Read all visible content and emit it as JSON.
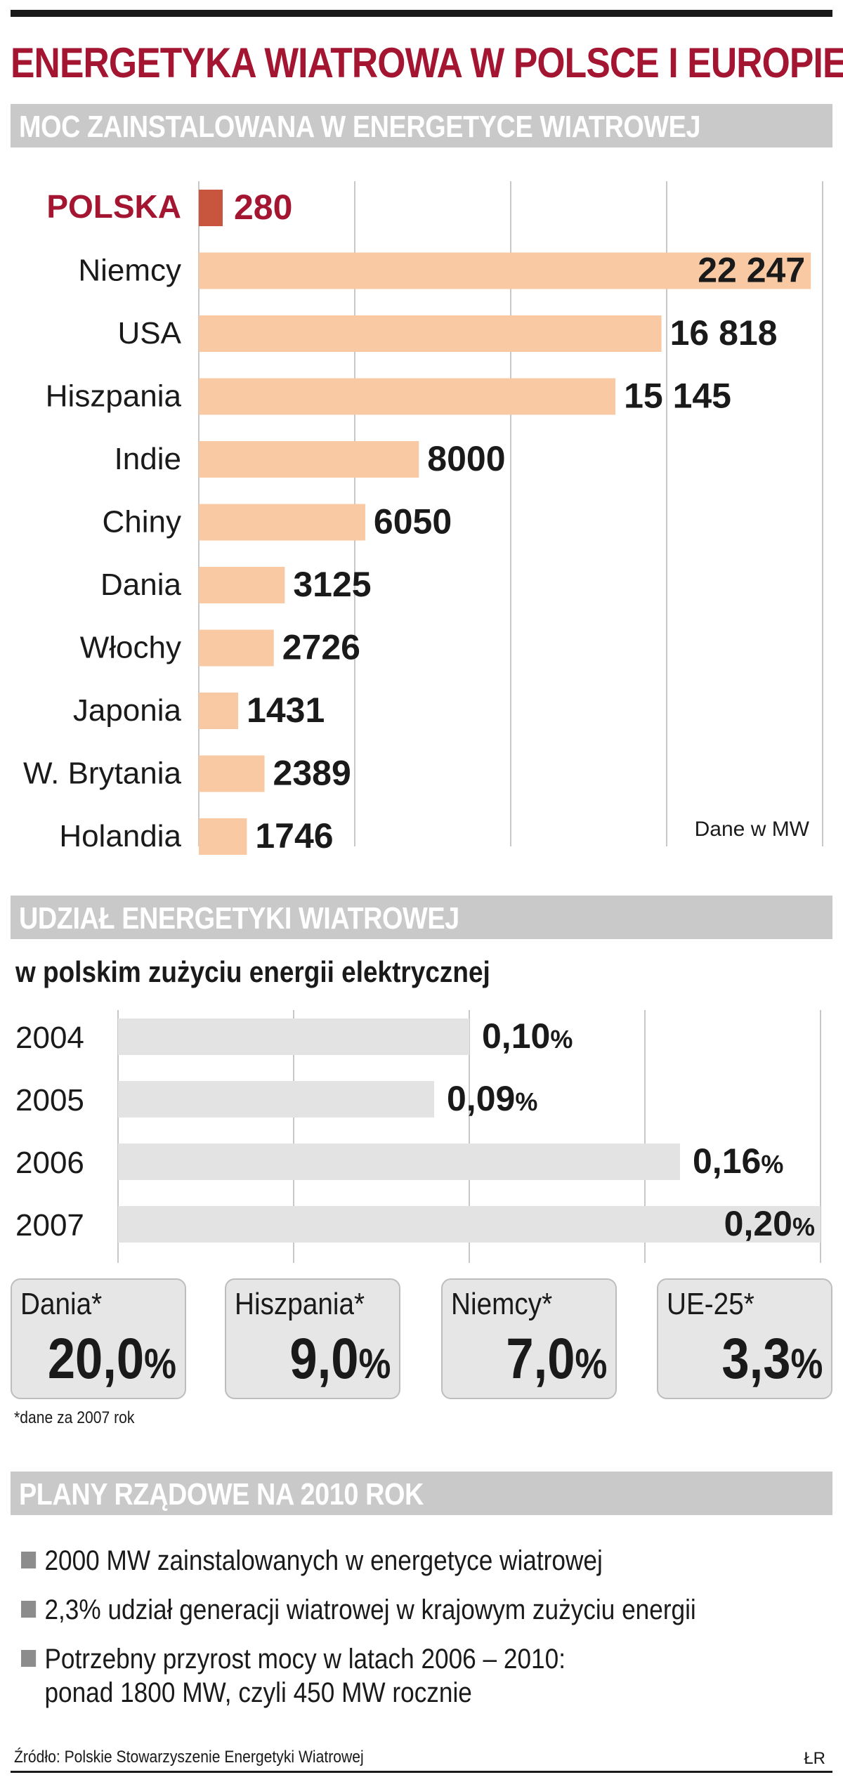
{
  "title": "ENERGETYKA WIATROWA W POLSCE I EUROPIE",
  "colors": {
    "title": "#a31530",
    "poland_bar": "#c8553d",
    "bar": "#f8c9a2",
    "share_bar": "#e3e3e3",
    "section_bar": "#c9c9c9"
  },
  "section1": {
    "header": "MOC ZAINSTALOWANA W ENERGETYCE WIATROWEJ",
    "unit_note": "Dane w MW"
  },
  "section2": {
    "header": "UDZIAŁ ENERGETYKI WIATROWEJ",
    "subtitle": "w polskim zużyciu energii elektrycznej"
  },
  "boxes": [
    {
      "label": "Dania*",
      "value": "20,0",
      "unit": "%"
    },
    {
      "label": "Hiszpania*",
      "value": "9,0",
      "unit": "%"
    },
    {
      "label": "Niemcy*",
      "value": "7,0",
      "unit": "%"
    },
    {
      "label": "UE-25*",
      "value": "3,3",
      "unit": "%"
    }
  ],
  "footnote": "*dane za 2007 rok",
  "section3": {
    "header": "PLANY RZĄDOWE NA 2010 ROK",
    "items": [
      {
        "text": "2000 MW zainstalowanych w energetyce wiatrowej",
        "cont": ""
      },
      {
        "text": "2,3% udział generacji wiatrowej w krajowym zużyciu energii",
        "cont": ""
      },
      {
        "text": "Potrzebny przyrost mocy w latach 2006 – 2010:",
        "cont": "ponad 1800 MW, czyli 450 MW rocznie"
      }
    ]
  },
  "source": "Źródło: Polskie Stowarzyszenie Energetyki Wiatrowej",
  "signature": "ŁR",
  "chart_data": [
    {
      "type": "bar",
      "orientation": "horizontal",
      "title": "MOC ZAINSTALOWANA W ENERGETYCE WIATROWEJ",
      "unit": "MW",
      "categories": [
        "POLSKA",
        "Niemcy",
        "USA",
        "Hiszpania",
        "Indie",
        "Chiny",
        "Dania",
        "Włochy",
        "Japonia",
        "W. Brytania",
        "Holandia"
      ],
      "values": [
        280,
        22247,
        16818,
        15145,
        8000,
        6050,
        3125,
        2726,
        1431,
        2389,
        1746
      ],
      "value_labels": [
        "280",
        "22 247",
        "16 818",
        "15 145",
        "8000",
        "6050",
        "3125",
        "2726",
        "1431",
        "2389",
        "1746"
      ],
      "highlight": "POLSKA",
      "grid": true
    },
    {
      "type": "bar",
      "orientation": "horizontal",
      "title": "UDZIAŁ ENERGETYKI WIATROWEJ",
      "subtitle": "w polskim zużyciu energii elektrycznej",
      "unit": "%",
      "categories": [
        "2004",
        "2005",
        "2006",
        "2007"
      ],
      "values": [
        0.1,
        0.09,
        0.16,
        0.2
      ],
      "value_labels": [
        "0,10",
        "0,09",
        "0,16",
        "0,20"
      ],
      "grid": true
    }
  ]
}
